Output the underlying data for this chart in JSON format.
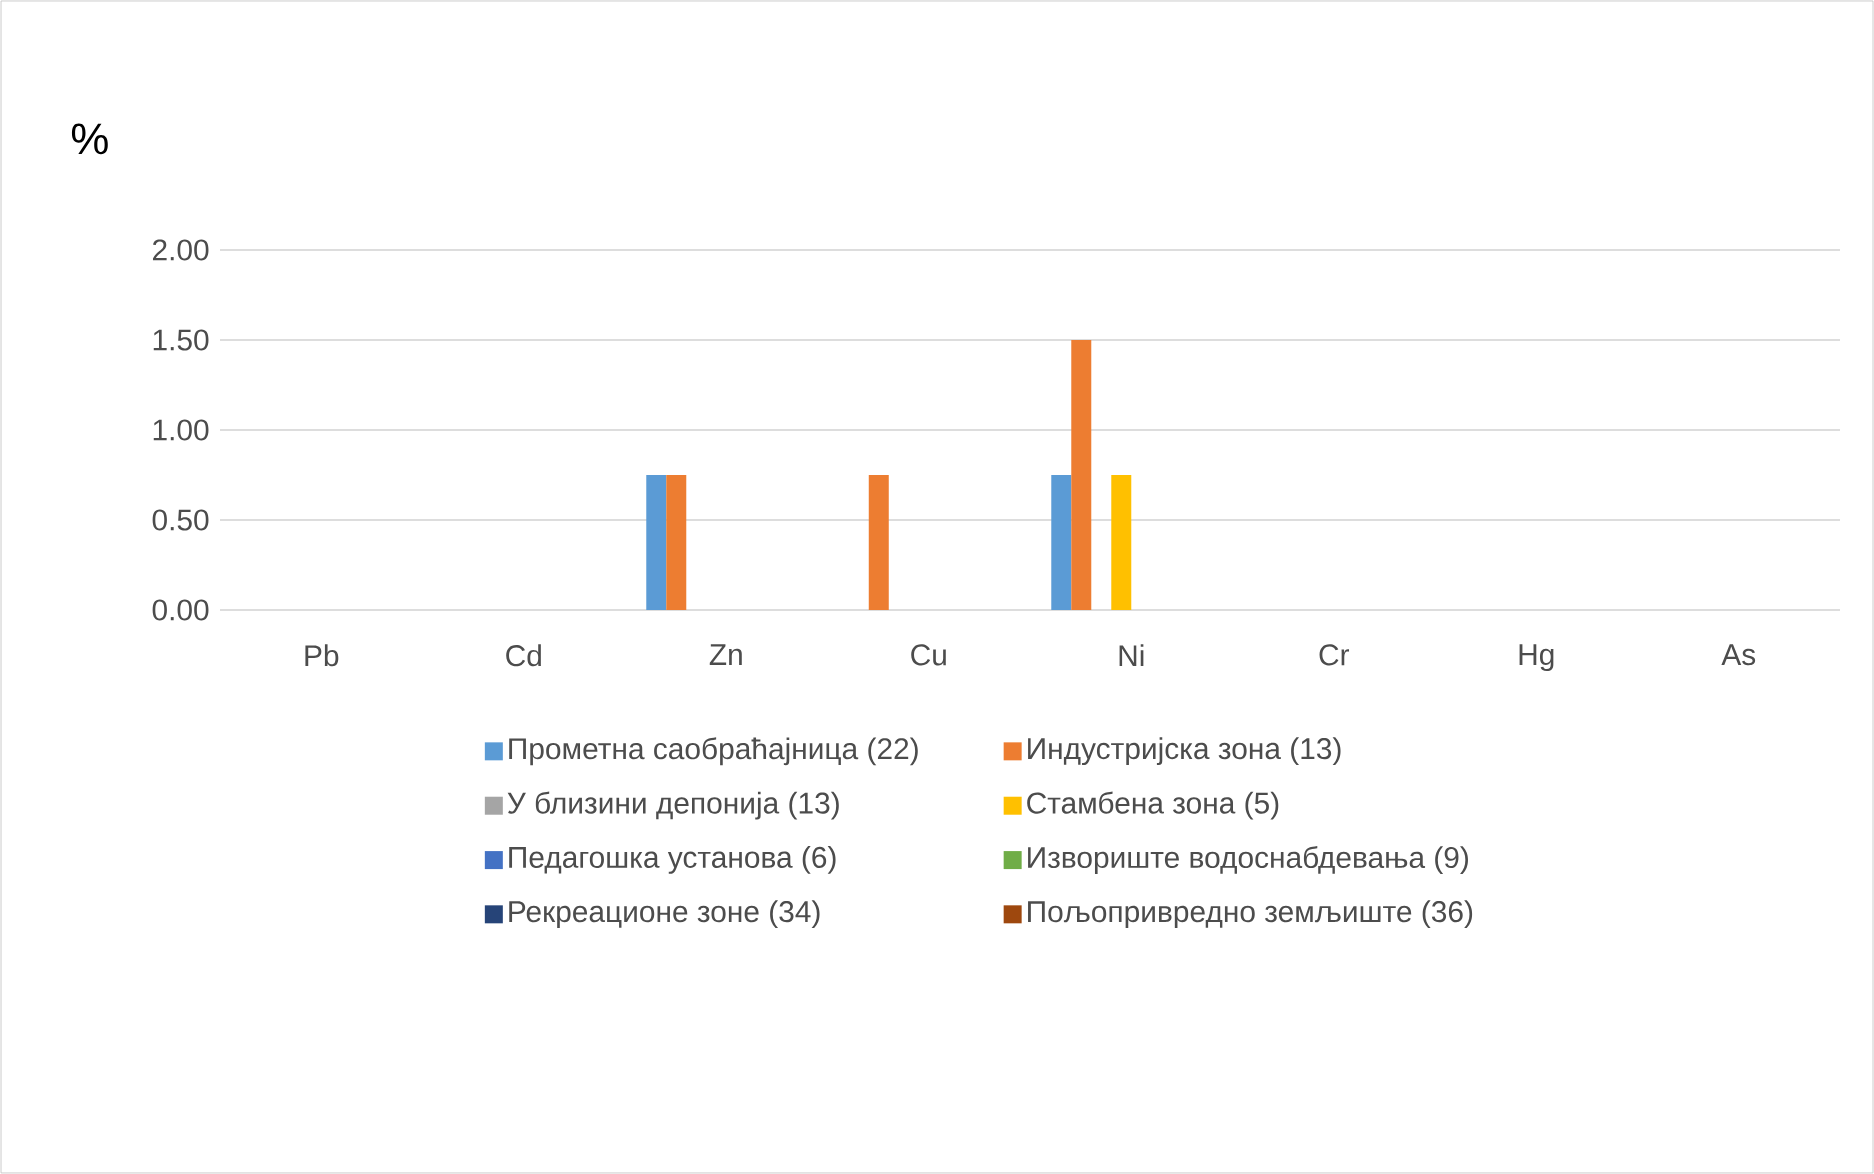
{
  "chart_data": {
    "type": "bar",
    "ylabel": "%",
    "categories": [
      "Pb",
      "Cd",
      "Zn",
      "Cu",
      "Ni",
      "Cr",
      "Hg",
      "As"
    ],
    "series": [
      {
        "name": "Прометна саобраћајница (22)",
        "color": "#5b9bd5",
        "values": [
          0,
          0,
          0.75,
          0,
          0.75,
          0,
          0,
          0
        ]
      },
      {
        "name": "Индустријска зона (13)",
        "color": "#ed7d31",
        "values": [
          0,
          0,
          0.75,
          0.75,
          1.5,
          0,
          0,
          0
        ]
      },
      {
        "name": "У близини депонија (13)",
        "color": "#a5a5a5",
        "values": [
          0,
          0,
          0,
          0,
          0,
          0,
          0,
          0
        ]
      },
      {
        "name": "Стамбена зона (5)",
        "color": "#ffc000",
        "values": [
          0,
          0,
          0,
          0,
          0.75,
          0,
          0,
          0
        ]
      },
      {
        "name": "Педагошка установа (6)",
        "color": "#4472c4",
        "values": [
          0,
          0,
          0,
          0,
          0,
          0,
          0,
          0
        ]
      },
      {
        "name": "Извориште водоснабдевања (9)",
        "color": "#70ad47",
        "values": [
          0,
          0,
          0,
          0,
          0,
          0,
          0,
          0
        ]
      },
      {
        "name": "Рекреационе зоне (34)",
        "color": "#264478",
        "values": [
          0,
          0,
          0,
          0,
          0,
          0,
          0,
          0
        ]
      },
      {
        "name": "Пољопривредно земљиште (36)",
        "color": "#9e480e",
        "values": [
          0,
          0,
          0,
          0,
          0,
          0,
          0,
          0
        ]
      }
    ],
    "ylim": [
      0,
      2
    ],
    "yticks": [
      {
        "value": 0,
        "label": "0.00"
      },
      {
        "value": 0.5,
        "label": "0.50"
      },
      {
        "value": 1,
        "label": "1.00"
      },
      {
        "value": 1.5,
        "label": "1.50"
      },
      {
        "value": 2,
        "label": "2.00"
      }
    ],
    "grid": "y",
    "legend": "bottom"
  }
}
